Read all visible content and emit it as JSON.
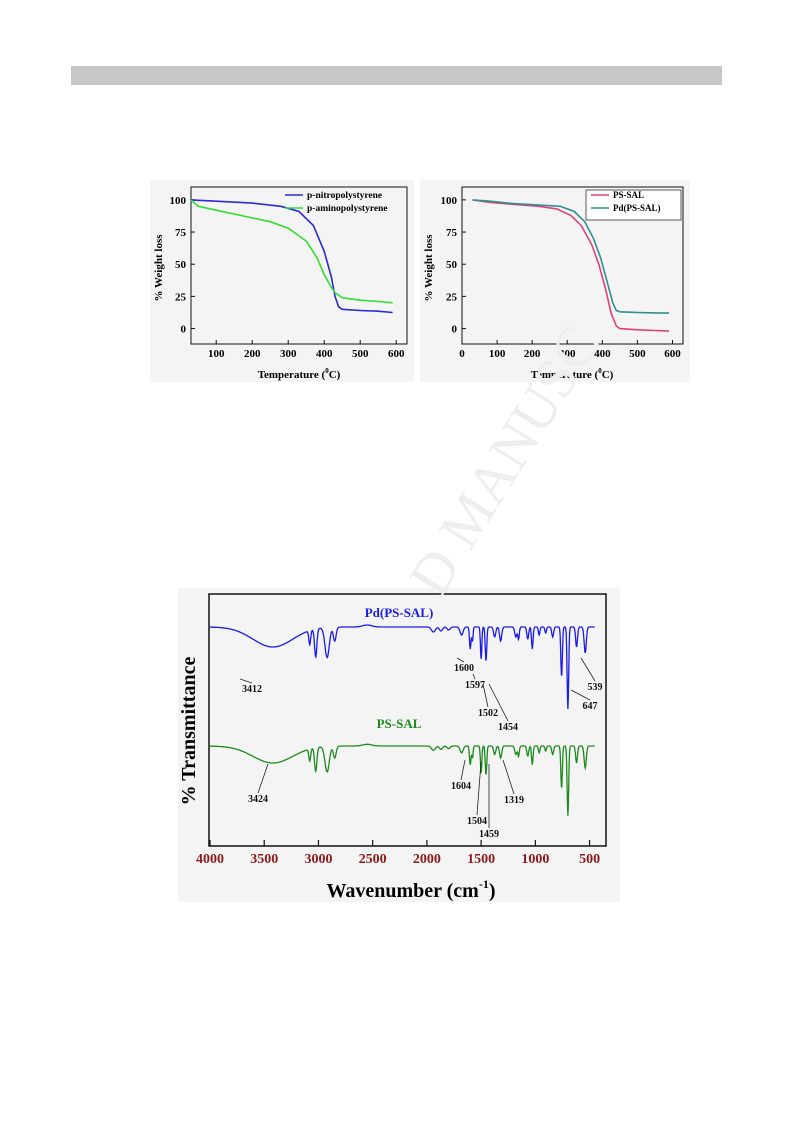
{
  "chart_data": [
    {
      "type": "line",
      "xlabel": "Temperature (°C)",
      "xlabel_main": "Temperature (",
      "xlabel_sup": "0",
      "xlabel_end": "C)",
      "ylabel": "% Weight loss",
      "xlim": [
        30,
        630
      ],
      "ylim": [
        -12,
        110
      ],
      "xticks": [
        100,
        200,
        300,
        400,
        500,
        600
      ],
      "yticks": [
        0,
        25,
        50,
        75,
        100
      ],
      "legend_position": "top-right",
      "series": [
        {
          "name": "p-nitropolystyrene",
          "color": "#2b2bd6",
          "x": [
            30,
            100,
            200,
            280,
            330,
            370,
            400,
            420,
            430,
            440,
            450,
            500,
            550,
            590
          ],
          "y": [
            100,
            99,
            97.5,
            95,
            91,
            80,
            60,
            40,
            25,
            17,
            15,
            14,
            13.5,
            12.5
          ]
        },
        {
          "name": "p-aminopolystyrene",
          "color": "#33dd33",
          "x": [
            30,
            50,
            100,
            150,
            200,
            250,
            300,
            350,
            380,
            400,
            420,
            430,
            440,
            450,
            500,
            550,
            590
          ],
          "y": [
            100,
            95,
            92,
            89,
            86,
            83,
            78,
            68,
            55,
            42,
            32,
            28,
            26,
            24,
            22,
            21,
            20
          ]
        }
      ]
    },
    {
      "type": "line",
      "xlabel": "Temperature (°C)",
      "xlabel_main": "Temperature (",
      "xlabel_sup": "0",
      "xlabel_end": "C)",
      "ylabel": "% Weight loss",
      "xlim": [
        0,
        630
      ],
      "ylim": [
        -12,
        110
      ],
      "xticks": [
        0,
        100,
        200,
        300,
        400,
        500,
        600
      ],
      "yticks": [
        0,
        25,
        50,
        75,
        100
      ],
      "legend_position": "top-right",
      "series": [
        {
          "name": "PS-SAL",
          "color": "#e0407a",
          "x": [
            30,
            80,
            150,
            220,
            270,
            310,
            340,
            370,
            390,
            410,
            425,
            440,
            450,
            500,
            550,
            590
          ],
          "y": [
            100,
            98,
            96.5,
            95,
            93,
            88,
            80,
            65,
            50,
            30,
            12,
            2,
            0,
            -1,
            -1.5,
            -2
          ]
        },
        {
          "name": "Pd(PS-SAL)",
          "color": "#2e9090",
          "x": [
            30,
            80,
            150,
            220,
            280,
            320,
            350,
            375,
            395,
            415,
            430,
            440,
            450,
            500,
            550,
            590
          ],
          "y": [
            100,
            99,
            97,
            96,
            95,
            91,
            83,
            70,
            55,
            35,
            20,
            14,
            13,
            12.5,
            12.2,
            12
          ]
        }
      ]
    },
    {
      "type": "line",
      "xlabel": "Wavenumber (cm-1)",
      "xlabel_main": "Wavenumber (cm",
      "xlabel_sup": "-1",
      "xlabel_end": ")",
      "ylabel": "% Transmittance",
      "x_reversed": true,
      "xlim": [
        4000,
        400
      ],
      "xticks": [
        4000,
        3500,
        3000,
        2500,
        2000,
        1500,
        1000,
        500
      ],
      "series": [
        {
          "name": "Pd(PS-SAL)",
          "color": "#1a1aee",
          "peaks": [
            {
              "x": 3412,
              "label": "3412"
            },
            {
              "x": 1600,
              "label": "1600"
            },
            {
              "x": 1597,
              "label": "1597"
            },
            {
              "x": 1502,
              "label": "1502"
            },
            {
              "x": 1454,
              "label": "1454"
            },
            {
              "x": 647,
              "label": "647"
            },
            {
              "x": 539,
              "label": "539"
            }
          ]
        },
        {
          "name": "PS-SAL",
          "color": "#1e8a1e",
          "peaks": [
            {
              "x": 3424,
              "label": "3424"
            },
            {
              "x": 1604,
              "label": "1604"
            },
            {
              "x": 1504,
              "label": "1504"
            },
            {
              "x": 1459,
              "label": "1459"
            },
            {
              "x": 1319,
              "label": "1319"
            }
          ]
        }
      ]
    }
  ]
}
